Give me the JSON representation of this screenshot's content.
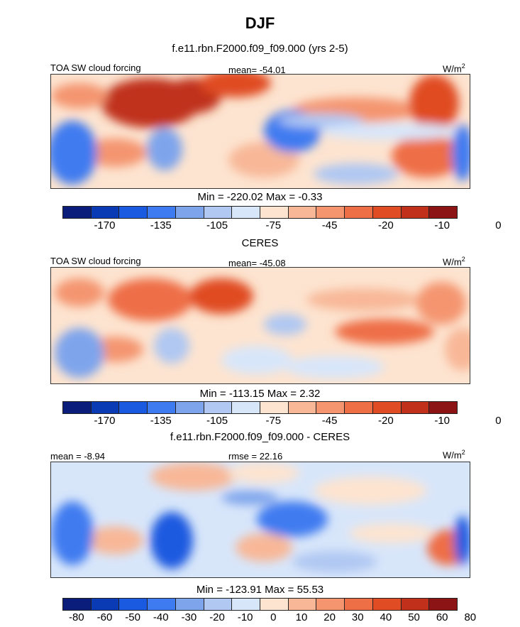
{
  "main_title": "DJF",
  "colors": {
    "cmap": [
      "#0a1d7a",
      "#0a3bb4",
      "#1a5ae0",
      "#3f7bf0",
      "#7ea4ec",
      "#b0c8f2",
      "#d8e6fa",
      "#fde4d0",
      "#f8b898",
      "#f49570",
      "#ee6e46",
      "#e04c24",
      "#c0301a",
      "#8c1414"
    ],
    "land_outline": "#000000"
  },
  "chart_data": [
    {
      "type": "heatmap",
      "title": "f.e11.rbn.F2000.f09_f09.000 (yrs 2-5)",
      "variable": "TOA SW cloud forcing",
      "stat_left": "",
      "stat_center": "mean= -54.01",
      "units": "W/m",
      "units_sup": "2",
      "min_max": "Min = -220.02 Max =  -0.33",
      "min": -220.02,
      "max": -0.33,
      "colorbar_ticks": [
        "-170",
        "-135",
        "-105",
        "-75",
        "-45",
        "-20",
        "-10",
        "0"
      ],
      "levels": [
        -170,
        -150,
        -135,
        -120,
        -105,
        -90,
        -75,
        -60,
        -45,
        -30,
        -20,
        -15,
        -10,
        -5,
        0
      ]
    },
    {
      "type": "heatmap",
      "title": "CERES",
      "variable": "TOA SW cloud forcing",
      "stat_left": "",
      "stat_center": "mean= -45.08",
      "units": "W/m",
      "units_sup": "2",
      "min_max": "Min = -113.15 Max =   2.32",
      "min": -113.15,
      "max": 2.32,
      "colorbar_ticks": [
        "-170",
        "-135",
        "-105",
        "-75",
        "-45",
        "-20",
        "-10",
        "0"
      ],
      "levels": [
        -170,
        -150,
        -135,
        -120,
        -105,
        -90,
        -75,
        -60,
        -45,
        -30,
        -20,
        -15,
        -10,
        -5,
        0
      ]
    },
    {
      "type": "heatmap",
      "title": "f.e11.rbn.F2000.f09_f09.000 - CERES",
      "variable": "",
      "stat_left": "mean =  -8.94",
      "stat_center": "rmse =  22.16",
      "units": "W/m",
      "units_sup": "2",
      "min_max": "Min = -123.91 Max =  55.53",
      "min": -123.91,
      "max": 55.53,
      "colorbar_ticks": [
        "-80",
        "-60",
        "-50",
        "-40",
        "-30",
        "-20",
        "-10",
        "0",
        "10",
        "20",
        "30",
        "40",
        "50",
        "60",
        "80"
      ],
      "levels": [
        -80,
        -60,
        -50,
        -40,
        -30,
        -20,
        -10,
        0,
        10,
        20,
        30,
        40,
        50,
        60,
        80
      ]
    }
  ]
}
